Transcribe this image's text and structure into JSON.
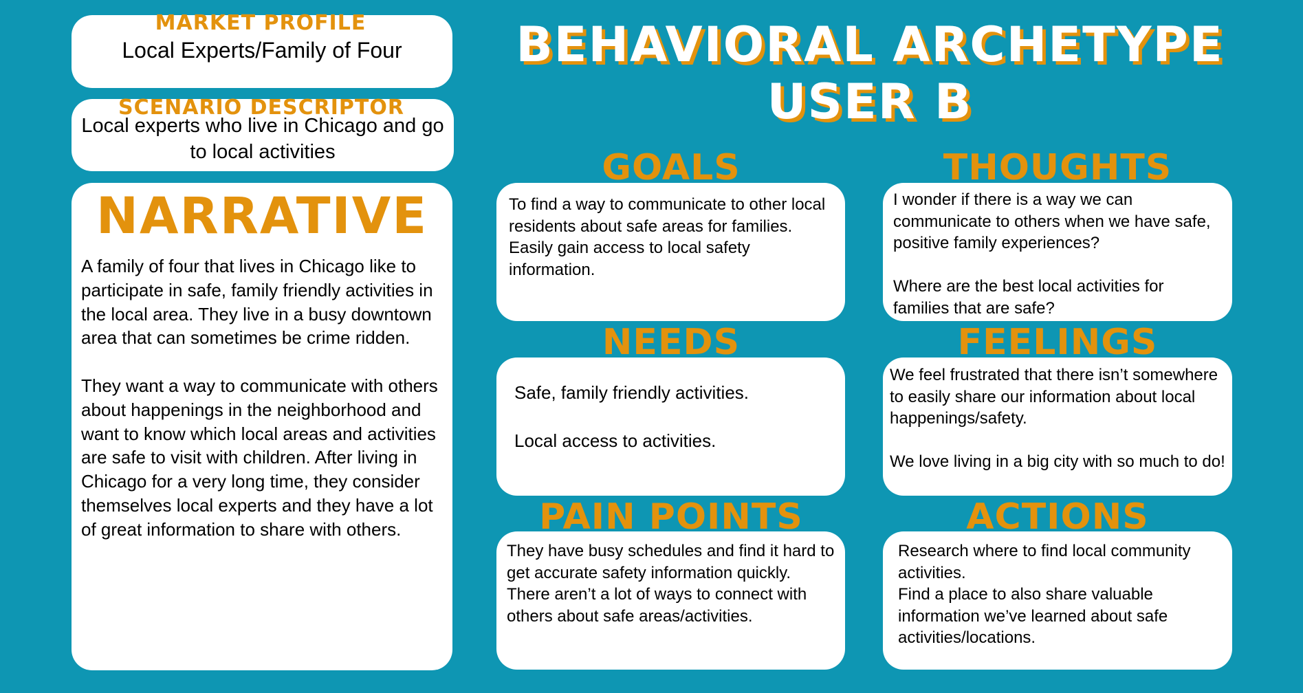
{
  "title": {
    "line1": "BEHAVIORAL ARCHETYPE",
    "line2": "USER B"
  },
  "market_profile": {
    "heading": "MARKET PROFILE",
    "text": "Local Experts/Family of Four"
  },
  "scenario": {
    "heading": "SCENARIO DESCRIPTOR",
    "text": "Local experts who live in Chicago and go to local activities"
  },
  "narrative": {
    "heading": "NARRATIVE",
    "text": "A family of four that lives in Chicago like to participate in safe, family friendly activities in the local area.  They live in a busy downtown area that can sometimes be crime ridden.\n\nThey want a way to communicate with others about happenings in the neighborhood and want to know which local areas and activities are safe to visit with children. After living in Chicago for a very long time, they consider themselves local experts and they have a lot of great information to share with others."
  },
  "goals": {
    "heading": "GOALS",
    "text": "To find a way to communicate to other local residents about safe areas for families.\nEasily gain access to local safety information."
  },
  "thoughts": {
    "heading": "THOUGHTS",
    "text": "I wonder if there is a way we can communicate to others when we have safe, positive family experiences?\n\nWhere are the best local activities for families that are safe?"
  },
  "needs": {
    "heading": "NEEDS",
    "text": "Safe, family friendly activities.\n\nLocal access to activities."
  },
  "feelings": {
    "heading": "FEELINGS",
    "text": "We feel frustrated that there isn’t somewhere to easily share our information about local happenings/safety.\n\nWe love living in a big city with so much to do!"
  },
  "pain_points": {
    "heading": "PAIN POINTS",
    "text": "They have busy schedules and find it hard to get accurate safety information quickly.\nThere aren’t a lot of ways to connect with others about safe areas/activities."
  },
  "actions": {
    "heading": "ACTIONS",
    "text": "Research where to find local community activities.\nFind a place to also share valuable information we’ve learned about safe activities/locations."
  },
  "colors": {
    "background": "#0e96b3",
    "accent": "#e3920d",
    "card": "#ffffff"
  }
}
